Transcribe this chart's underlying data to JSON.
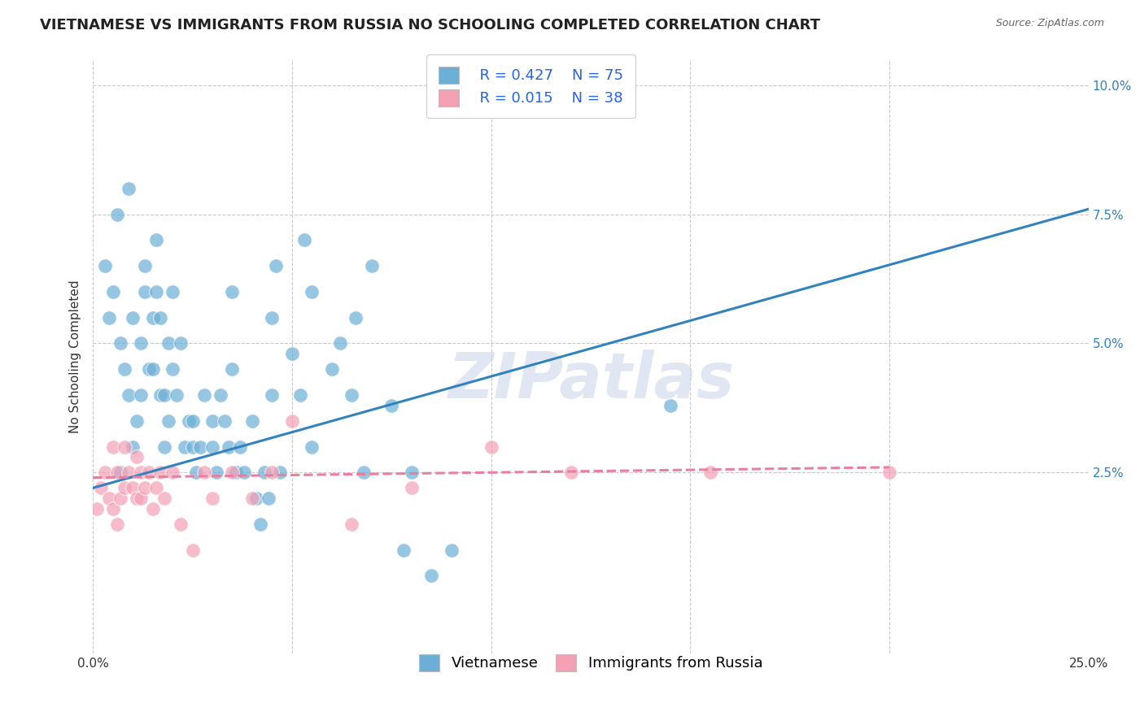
{
  "title": "VIETNAMESE VS IMMIGRANTS FROM RUSSIA NO SCHOOLING COMPLETED CORRELATION CHART",
  "source": "Source: ZipAtlas.com",
  "xlabel": "",
  "ylabel": "No Schooling Completed",
  "xlim": [
    0.0,
    0.25
  ],
  "ylim": [
    -0.01,
    0.105
  ],
  "xticks": [
    0.0,
    0.05,
    0.1,
    0.15,
    0.2,
    0.25
  ],
  "xticklabels": [
    "0.0%",
    "",
    "",
    "",
    "",
    "25.0%"
  ],
  "yticks": [
    0.025,
    0.05,
    0.075,
    0.1
  ],
  "yticklabels": [
    "2.5%",
    "5.0%",
    "7.5%",
    "10.0%"
  ],
  "vietnamese_color": "#6baed6",
  "russian_color": "#f4a0b5",
  "line_viet_color": "#3182bd",
  "line_rus_color": "#e87fa0",
  "legend_R_viet": "R = 0.427",
  "legend_N_viet": "N = 75",
  "legend_R_rus": "R = 0.015",
  "legend_N_rus": "N = 38",
  "legend_label_viet": "Vietnamese",
  "legend_label_rus": "Immigrants from Russia",
  "watermark": "ZIPatlas",
  "background_color": "#ffffff",
  "plot_bg_color": "#ffffff",
  "grid_color": "#c8c8c8",
  "title_fontsize": 13,
  "axis_fontsize": 11,
  "tick_fontsize": 11,
  "legend_fontsize": 13,
  "viet_x": [
    0.003,
    0.004,
    0.005,
    0.006,
    0.007,
    0.007,
    0.008,
    0.009,
    0.009,
    0.01,
    0.01,
    0.011,
    0.012,
    0.012,
    0.013,
    0.013,
    0.014,
    0.015,
    0.015,
    0.016,
    0.016,
    0.017,
    0.017,
    0.018,
    0.018,
    0.019,
    0.019,
    0.02,
    0.02,
    0.021,
    0.022,
    0.023,
    0.024,
    0.025,
    0.025,
    0.026,
    0.027,
    0.028,
    0.03,
    0.03,
    0.031,
    0.032,
    0.033,
    0.034,
    0.035,
    0.035,
    0.036,
    0.037,
    0.038,
    0.04,
    0.041,
    0.042,
    0.043,
    0.044,
    0.045,
    0.045,
    0.046,
    0.047,
    0.05,
    0.052,
    0.053,
    0.055,
    0.055,
    0.06,
    0.062,
    0.065,
    0.066,
    0.068,
    0.07,
    0.075,
    0.078,
    0.08,
    0.085,
    0.09,
    0.145
  ],
  "viet_y": [
    0.065,
    0.055,
    0.06,
    0.075,
    0.025,
    0.05,
    0.045,
    0.04,
    0.08,
    0.055,
    0.03,
    0.035,
    0.05,
    0.04,
    0.06,
    0.065,
    0.045,
    0.045,
    0.055,
    0.06,
    0.07,
    0.04,
    0.055,
    0.03,
    0.04,
    0.035,
    0.05,
    0.045,
    0.06,
    0.04,
    0.05,
    0.03,
    0.035,
    0.03,
    0.035,
    0.025,
    0.03,
    0.04,
    0.03,
    0.035,
    0.025,
    0.04,
    0.035,
    0.03,
    0.045,
    0.06,
    0.025,
    0.03,
    0.025,
    0.035,
    0.02,
    0.015,
    0.025,
    0.02,
    0.04,
    0.055,
    0.065,
    0.025,
    0.048,
    0.04,
    0.07,
    0.03,
    0.06,
    0.045,
    0.05,
    0.04,
    0.055,
    0.025,
    0.065,
    0.038,
    0.01,
    0.025,
    0.005,
    0.01,
    0.038
  ],
  "rus_x": [
    0.001,
    0.002,
    0.003,
    0.004,
    0.005,
    0.005,
    0.006,
    0.006,
    0.007,
    0.008,
    0.008,
    0.009,
    0.01,
    0.011,
    0.011,
    0.012,
    0.012,
    0.013,
    0.014,
    0.015,
    0.016,
    0.017,
    0.018,
    0.02,
    0.022,
    0.025,
    0.028,
    0.03,
    0.035,
    0.04,
    0.045,
    0.05,
    0.065,
    0.08,
    0.1,
    0.12,
    0.155,
    0.2
  ],
  "rus_y": [
    0.018,
    0.022,
    0.025,
    0.02,
    0.018,
    0.03,
    0.015,
    0.025,
    0.02,
    0.022,
    0.03,
    0.025,
    0.022,
    0.028,
    0.02,
    0.02,
    0.025,
    0.022,
    0.025,
    0.018,
    0.022,
    0.025,
    0.02,
    0.025,
    0.015,
    0.01,
    0.025,
    0.02,
    0.025,
    0.02,
    0.025,
    0.035,
    0.015,
    0.022,
    0.03,
    0.025,
    0.025,
    0.025
  ],
  "viet_line_x": [
    0.0,
    0.25
  ],
  "viet_line_y": [
    0.022,
    0.076
  ],
  "rus_line_x": [
    0.0,
    0.2
  ],
  "rus_line_y": [
    0.024,
    0.026
  ]
}
